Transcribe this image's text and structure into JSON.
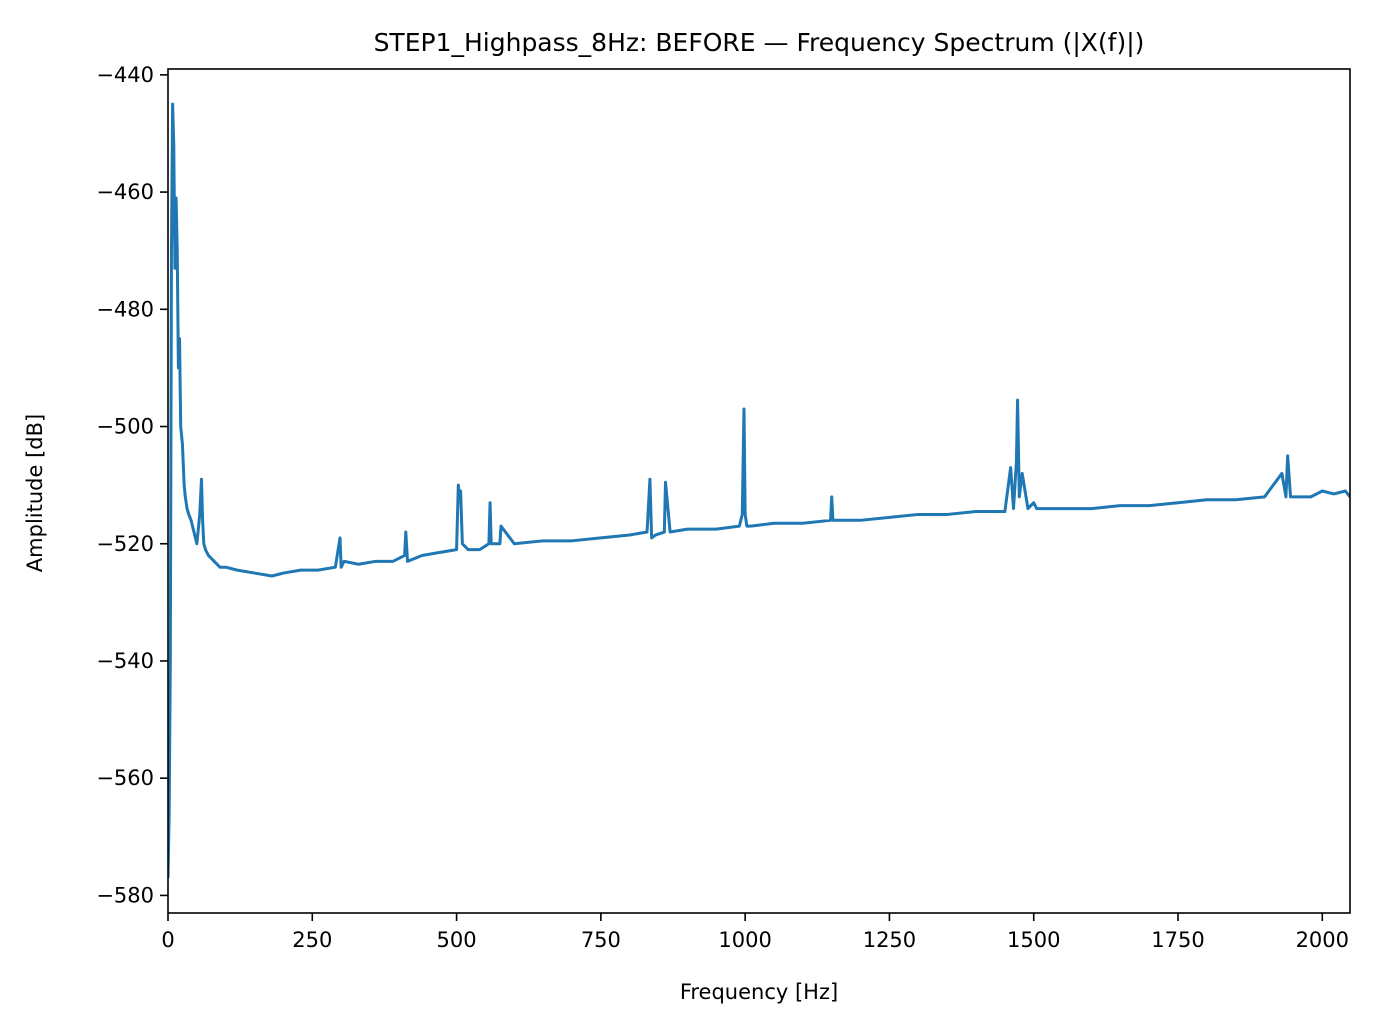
{
  "chart_data": {
    "type": "line",
    "title": "STEP1_Highpass_8Hz: BEFORE — Frequency Spectrum (|X(f)|)",
    "xlabel": "Frequency [Hz]",
    "ylabel": "Amplitude [dB]",
    "xlim": [
      0,
      2048
    ],
    "ylim": [
      -583,
      -439
    ],
    "xticks": [
      0,
      250,
      500,
      750,
      1000,
      1250,
      1500,
      1750,
      2000
    ],
    "xtick_labels": [
      "0",
      "250",
      "500",
      "750",
      "1000",
      "1250",
      "1500",
      "1750",
      "2000"
    ],
    "yticks": [
      -580,
      -560,
      -540,
      -520,
      -500,
      -480,
      -460,
      -440
    ],
    "ytick_labels": [
      "−580",
      "−560",
      "−540",
      "−520",
      "−500",
      "−480",
      "−460",
      "−440"
    ],
    "grid": false,
    "line_color": "#1f77b4",
    "series": [
      {
        "x": [
          0,
          2,
          4,
          6,
          8,
          10,
          12,
          14,
          16,
          18,
          20,
          22,
          25,
          28,
          30,
          33,
          36,
          40,
          45,
          50,
          55,
          58,
          60,
          62,
          65,
          70,
          80,
          90,
          100,
          120,
          150,
          180,
          200,
          230,
          260,
          290,
          298,
          300,
          305,
          330,
          360,
          390,
          410,
          412,
          415,
          440,
          470,
          500,
          503,
          505,
          507,
          510,
          520,
          540,
          556,
          558,
          560,
          575,
          577,
          600,
          650,
          700,
          750,
          800,
          830,
          835,
          838,
          845,
          860,
          862,
          870,
          900,
          950,
          990,
          995,
          998,
          1000,
          1003,
          1010,
          1050,
          1100,
          1148,
          1150,
          1152,
          1200,
          1250,
          1300,
          1350,
          1400,
          1450,
          1460,
          1465,
          1470,
          1472,
          1475,
          1480,
          1490,
          1500,
          1505,
          1510,
          1550,
          1600,
          1650,
          1700,
          1750,
          1800,
          1850,
          1900,
          1930,
          1937,
          1940,
          1945,
          1950,
          1980,
          2000,
          2020,
          2040,
          2048
        ],
        "y": [
          -577,
          -566,
          -540,
          -470,
          -445,
          -452,
          -473,
          -461,
          -470,
          -490,
          -485,
          -500,
          -503,
          -510,
          -512,
          -514,
          -515,
          -516,
          -518,
          -520,
          -515,
          -509,
          -516,
          -520,
          -521,
          -522,
          -523,
          -524,
          -524,
          -524.5,
          -525,
          -525.5,
          -525,
          -524.5,
          -524.5,
          -524,
          -519,
          -524,
          -523,
          -523.5,
          -523,
          -523,
          -522,
          -518,
          -523,
          -522,
          -521.5,
          -521,
          -510,
          -512,
          -511,
          -520,
          -521,
          -521,
          -520,
          -513,
          -520,
          -520,
          -517,
          -520,
          -519.5,
          -519.5,
          -519,
          -518.5,
          -518,
          -509,
          -519,
          -518.5,
          -518,
          -509.5,
          -518,
          -517.5,
          -517.5,
          -517,
          -515,
          -497,
          -515,
          -517,
          -517,
          -516.5,
          -516.5,
          -516,
          -512,
          -516,
          -516,
          -515.5,
          -515,
          -515,
          -514.5,
          -514.5,
          -507,
          -514,
          -506,
          -495.5,
          -512,
          -508,
          -514,
          -513,
          -514,
          -514,
          -514,
          -514,
          -513.5,
          -513.5,
          -513,
          -512.5,
          -512.5,
          -512,
          -508,
          -512,
          -505,
          -512,
          -512,
          -512,
          -511,
          -511.5,
          -511,
          -512
        ]
      }
    ]
  }
}
